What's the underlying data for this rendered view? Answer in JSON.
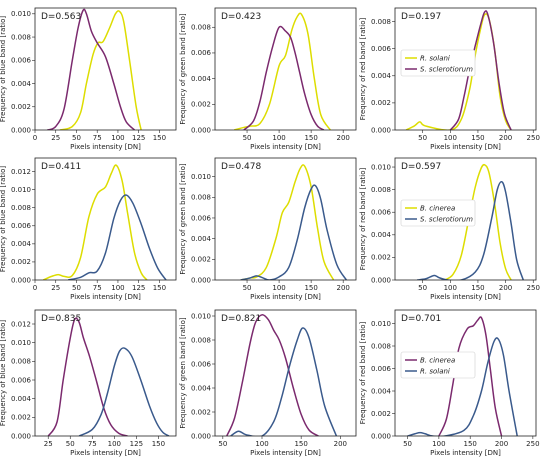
{
  "chart_data": [
    {
      "type": "line",
      "title": "",
      "annotation": "D=0.563",
      "xlabel": "Pixels intensity [DN]",
      "ylabel": "Frequency of blue band [ratio]",
      "xlim": [
        0,
        170
      ],
      "ylim": [
        0,
        0.0105
      ],
      "xticks": [
        0,
        25,
        50,
        75,
        100,
        125,
        150
      ],
      "yticks": [
        0,
        0.002,
        0.004,
        0.006,
        0.008,
        0.01
      ],
      "series": [
        {
          "color": "#dddd00",
          "x": [
            30,
            45,
            55,
            62,
            70,
            76,
            82,
            90,
            97,
            102,
            107,
            114,
            122,
            128
          ],
          "y": [
            0,
            0.0003,
            0.0015,
            0.004,
            0.0065,
            0.0075,
            0.0076,
            0.0088,
            0.01,
            0.0102,
            0.0093,
            0.006,
            0.002,
            0
          ]
        },
        {
          "color": "#7b2a6e",
          "x": [
            15,
            25,
            35,
            45,
            52,
            58,
            62,
            68,
            75,
            85,
            95,
            103,
            110,
            120
          ],
          "y": [
            0,
            0.0003,
            0.0018,
            0.006,
            0.0088,
            0.0103,
            0.01,
            0.0085,
            0.0075,
            0.0063,
            0.004,
            0.002,
            0.0007,
            0
          ]
        }
      ],
      "legend": []
    },
    {
      "type": "line",
      "title": "",
      "annotation": "D=0.423",
      "xlabel": "Pixels intensity [DN]",
      "ylabel": "Frequency of green band [ratio]",
      "xlim": [
        0,
        220
      ],
      "ylim": [
        0,
        0.0095
      ],
      "xticks": [
        50,
        100,
        150,
        200
      ],
      "yticks": [
        0,
        0.002,
        0.004,
        0.006,
        0.008
      ],
      "series": [
        {
          "color": "#dddd00",
          "x": [
            30,
            45,
            55,
            70,
            85,
            100,
            110,
            120,
            128,
            135,
            145,
            155,
            165,
            180
          ],
          "y": [
            0,
            0.0002,
            0.0003,
            0.0005,
            0.002,
            0.005,
            0.0058,
            0.0078,
            0.0088,
            0.009,
            0.0075,
            0.004,
            0.0012,
            0
          ]
        },
        {
          "color": "#7b2a6e",
          "x": [
            45,
            60,
            70,
            80,
            90,
            100,
            110,
            118,
            125,
            132,
            140,
            150,
            160,
            170
          ],
          "y": [
            0,
            0.0007,
            0.0022,
            0.0045,
            0.0065,
            0.008,
            0.0077,
            0.0072,
            0.006,
            0.0045,
            0.0028,
            0.0012,
            0.0003,
            0
          ]
        }
      ],
      "legend": []
    },
    {
      "type": "line",
      "title": "",
      "annotation": "D=0.197",
      "xlabel": "Pixels intensity [DN]",
      "ylabel": "Frequency of red band [ratio]",
      "xlim": [
        0,
        255
      ],
      "ylim": [
        0,
        0.009
      ],
      "xticks": [
        50,
        100,
        150,
        200,
        250
      ],
      "yticks": [
        0,
        0.002,
        0.004,
        0.006,
        0.008
      ],
      "series": [
        {
          "color": "#dddd00",
          "x": [
            20,
            35,
            45,
            55,
            100,
            120,
            135,
            145,
            155,
            162,
            170,
            180,
            190,
            200,
            210
          ],
          "y": [
            0,
            0.0003,
            0.0006,
            0.0003,
            0,
            0.0008,
            0.003,
            0.0055,
            0.0075,
            0.0085,
            0.0082,
            0.006,
            0.0025,
            0.0007,
            0
          ]
        },
        {
          "color": "#7b2a6e",
          "x": [
            100,
            115,
            125,
            135,
            145,
            155,
            162,
            168,
            178,
            188,
            198,
            210
          ],
          "y": [
            0,
            0.0008,
            0.0025,
            0.0045,
            0.0062,
            0.0078,
            0.0087,
            0.0085,
            0.0065,
            0.0035,
            0.0012,
            0
          ]
        }
      ],
      "legend": [
        {
          "label": "R. solani",
          "color": "#dddd00"
        },
        {
          "label": "S. sclerotiorum",
          "color": "#7b2a6e"
        }
      ]
    },
    {
      "type": "line",
      "title": "",
      "annotation": "D=0.411",
      "xlabel": "Pixels intensity [DN]",
      "ylabel": "Frequency of blue band [ratio]",
      "xlim": [
        0,
        170
      ],
      "ylim": [
        0,
        0.0135
      ],
      "xticks": [
        0,
        25,
        50,
        75,
        100,
        125,
        150
      ],
      "yticks": [
        0,
        0.002,
        0.004,
        0.006,
        0.008,
        0.01,
        0.012
      ],
      "series": [
        {
          "color": "#dddd00",
          "x": [
            10,
            20,
            28,
            35,
            45,
            55,
            65,
            75,
            85,
            92,
            98,
            105,
            112,
            120,
            128,
            135
          ],
          "y": [
            0,
            0.0004,
            0.0006,
            0.0004,
            0.0005,
            0.0025,
            0.007,
            0.0095,
            0.0103,
            0.0118,
            0.0127,
            0.011,
            0.0072,
            0.003,
            0.0008,
            0
          ]
        },
        {
          "color": "#3a5a8c",
          "x": [
            40,
            55,
            65,
            75,
            85,
            95,
            103,
            110,
            118,
            128,
            138,
            148,
            158
          ],
          "y": [
            0,
            0.0003,
            0.0008,
            0.001,
            0.003,
            0.0068,
            0.0088,
            0.0094,
            0.0085,
            0.0062,
            0.0035,
            0.0013,
            0
          ]
        }
      ],
      "legend": []
    },
    {
      "type": "line",
      "title": "",
      "annotation": "D=0.478",
      "xlabel": "Pixels intensity [DN]",
      "ylabel": "Frequency of green band [ratio]",
      "xlim": [
        0,
        220
      ],
      "ylim": [
        0,
        0.0118
      ],
      "xticks": [
        50,
        100,
        150,
        200
      ],
      "yticks": [
        0,
        0.002,
        0.004,
        0.006,
        0.008,
        0.01
      ],
      "series": [
        {
          "color": "#dddd00",
          "x": [
            40,
            55,
            65,
            80,
            95,
            105,
            115,
            125,
            133,
            140,
            150,
            160,
            170,
            185
          ],
          "y": [
            0,
            0.0002,
            0.0003,
            0.0012,
            0.004,
            0.0065,
            0.0075,
            0.0095,
            0.0108,
            0.011,
            0.009,
            0.005,
            0.0018,
            0
          ]
        },
        {
          "color": "#3a5a8c",
          "x": [
            40,
            55,
            65,
            75,
            85,
            100,
            115,
            128,
            140,
            150,
            157,
            165,
            175,
            190,
            205
          ],
          "y": [
            0,
            0.0002,
            0.0004,
            0.0002,
            0,
            0.0003,
            0.0012,
            0.0038,
            0.007,
            0.0088,
            0.0091,
            0.0078,
            0.0048,
            0.0015,
            0
          ]
        }
      ],
      "legend": []
    },
    {
      "type": "line",
      "title": "",
      "annotation": "D=0.597",
      "xlabel": "Pixels intensity [DN]",
      "ylabel": "Frequency of red band [ratio]",
      "xlim": [
        0,
        255
      ],
      "ylim": [
        0,
        0.0108
      ],
      "xticks": [
        50,
        100,
        150,
        200,
        250
      ],
      "yticks": [
        0,
        0.002,
        0.004,
        0.006,
        0.008,
        0.01
      ],
      "series": [
        {
          "color": "#dddd00",
          "x": [
            90,
            105,
            120,
            135,
            145,
            155,
            162,
            170,
            180,
            190,
            200,
            210
          ],
          "y": [
            0,
            0.0005,
            0.0022,
            0.0058,
            0.0082,
            0.0098,
            0.0102,
            0.0095,
            0.0068,
            0.0033,
            0.001,
            0
          ]
        },
        {
          "color": "#3a5a8c",
          "x": [
            40,
            55,
            65,
            72,
            80,
            95,
            120,
            145,
            160,
            175,
            185,
            193,
            200,
            210,
            220,
            232
          ],
          "y": [
            0,
            0.0001,
            0.0003,
            0.0004,
            0.0002,
            0,
            0,
            0.0007,
            0.0022,
            0.0055,
            0.008,
            0.0087,
            0.0078,
            0.005,
            0.0018,
            0
          ]
        }
      ],
      "legend": [
        {
          "label": "B. cinerea",
          "color": "#dddd00"
        },
        {
          "label": "S. sclerotiorum",
          "color": "#3a5a8c"
        }
      ]
    },
    {
      "type": "line",
      "title": "",
      "annotation": "D=0.835",
      "xlabel": "Pixels intensity [DN]",
      "ylabel": "Frequency of blue band [ratio]",
      "xlim": [
        10,
        170
      ],
      "ylim": [
        0,
        0.0135
      ],
      "xticks": [
        25,
        50,
        75,
        100,
        125,
        150
      ],
      "yticks": [
        0,
        0.002,
        0.004,
        0.006,
        0.008,
        0.01,
        0.012
      ],
      "series": [
        {
          "color": "#7b2a6e",
          "x": [
            25,
            35,
            42,
            50,
            55,
            60,
            65,
            72,
            80,
            88,
            96,
            105,
            115
          ],
          "y": [
            0,
            0.0015,
            0.006,
            0.0105,
            0.0125,
            0.0122,
            0.0105,
            0.0085,
            0.0058,
            0.003,
            0.0012,
            0.0003,
            0
          ]
        },
        {
          "color": "#3a5a8c",
          "x": [
            60,
            75,
            85,
            92,
            100,
            106,
            112,
            120,
            130,
            140,
            148,
            155,
            162
          ],
          "y": [
            0,
            0.0007,
            0.0023,
            0.0045,
            0.0075,
            0.0091,
            0.0094,
            0.0085,
            0.006,
            0.0032,
            0.0014,
            0.0004,
            0
          ]
        }
      ],
      "legend": []
    },
    {
      "type": "line",
      "title": "",
      "annotation": "D=0.821",
      "xlabel": "Pixels intensity [DN]",
      "ylabel": "Frequency of green band [ratio]",
      "xlim": [
        40,
        220
      ],
      "ylim": [
        0,
        0.0105
      ],
      "xticks": [
        50,
        100,
        150,
        200
      ],
      "yticks": [
        0,
        0.002,
        0.004,
        0.006,
        0.008,
        0.01
      ],
      "series": [
        {
          "color": "#7b2a6e",
          "x": [
            55,
            65,
            75,
            85,
            92,
            100,
            108,
            115,
            122,
            130,
            140,
            150,
            160,
            172
          ],
          "y": [
            0,
            0.0015,
            0.0045,
            0.0078,
            0.0095,
            0.0101,
            0.0097,
            0.0088,
            0.008,
            0.0065,
            0.004,
            0.0018,
            0.0005,
            0
          ]
        },
        {
          "color": "#3a5a8c",
          "x": [
            60,
            70,
            80,
            100,
            115,
            125,
            135,
            145,
            152,
            160,
            170,
            180,
            195
          ],
          "y": [
            0,
            0.0004,
            0.0001,
            0,
            0.0012,
            0.0032,
            0.0058,
            0.008,
            0.009,
            0.0082,
            0.0055,
            0.0025,
            0
          ]
        }
      ],
      "legend": []
    },
    {
      "type": "line",
      "title": "",
      "annotation": "D=0.701",
      "xlabel": "Pixels intensity [DN]",
      "ylabel": "Frequency of red band [ratio]",
      "xlim": [
        30,
        255
      ],
      "ylim": [
        0,
        0.0112
      ],
      "xticks": [
        50,
        100,
        150,
        200,
        250
      ],
      "yticks": [
        0,
        0.002,
        0.004,
        0.006,
        0.008,
        0.01
      ],
      "series": [
        {
          "color": "#7b2a6e",
          "x": [
            100,
            112,
            122,
            132,
            145,
            155,
            162,
            168,
            175,
            182,
            190,
            200
          ],
          "y": [
            0,
            0.0015,
            0.0045,
            0.0078,
            0.0095,
            0.0098,
            0.0103,
            0.0105,
            0.009,
            0.006,
            0.0025,
            0
          ]
        },
        {
          "color": "#3a5a8c",
          "x": [
            50,
            62,
            70,
            78,
            90,
            110,
            140,
            155,
            168,
            178,
            188,
            195,
            203,
            212,
            225
          ],
          "y": [
            0,
            0.0002,
            0.0003,
            0.0002,
            0,
            0,
            0.0005,
            0.0018,
            0.004,
            0.0065,
            0.0084,
            0.0086,
            0.0072,
            0.004,
            0
          ]
        }
      ],
      "legend": [
        {
          "label": "B. cinerea",
          "color": "#7b2a6e"
        },
        {
          "label": "R. solani",
          "color": "#3a5a8c"
        }
      ]
    }
  ]
}
